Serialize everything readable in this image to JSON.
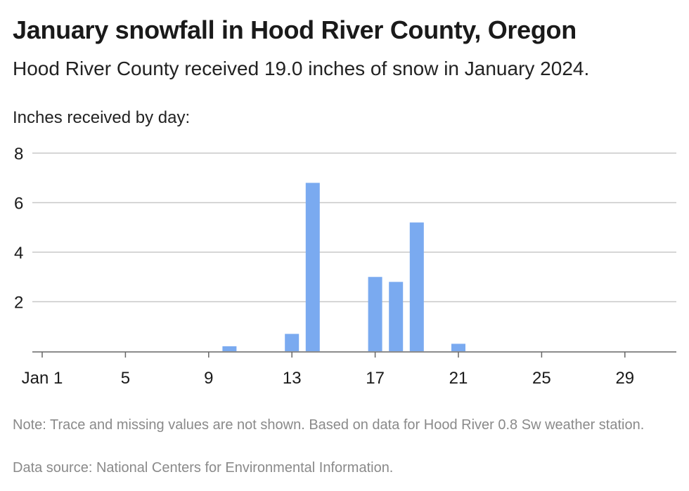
{
  "title": "January snowfall in Hood River County, Oregon",
  "subtitle": "Hood River County received 19.0 inches of snow in January 2024.",
  "y_axis_title": "Inches received by day:",
  "note": "Note: Trace and missing values are not shown. Based on data for Hood River 0.8 Sw weather station.",
  "source": "Data source: National Centers for Environmental Information.",
  "colors": {
    "bar": "#7aaaf0",
    "grid": "#c8c8c8",
    "axis": "#666666"
  },
  "chart_data": {
    "type": "bar",
    "x_tick_labels": [
      "Jan 1",
      "5",
      "9",
      "13",
      "17",
      "21",
      "25",
      "29"
    ],
    "x_tick_days": [
      1,
      5,
      9,
      13,
      17,
      21,
      25,
      29
    ],
    "y_ticks": [
      2,
      4,
      6,
      8
    ],
    "ylim": [
      0,
      8
    ],
    "xlim": [
      1,
      31
    ],
    "grid": true,
    "x": [
      10,
      13,
      14,
      17,
      18,
      19,
      21
    ],
    "values": [
      0.2,
      0.7,
      6.8,
      3.0,
      2.8,
      5.2,
      0.3
    ]
  }
}
